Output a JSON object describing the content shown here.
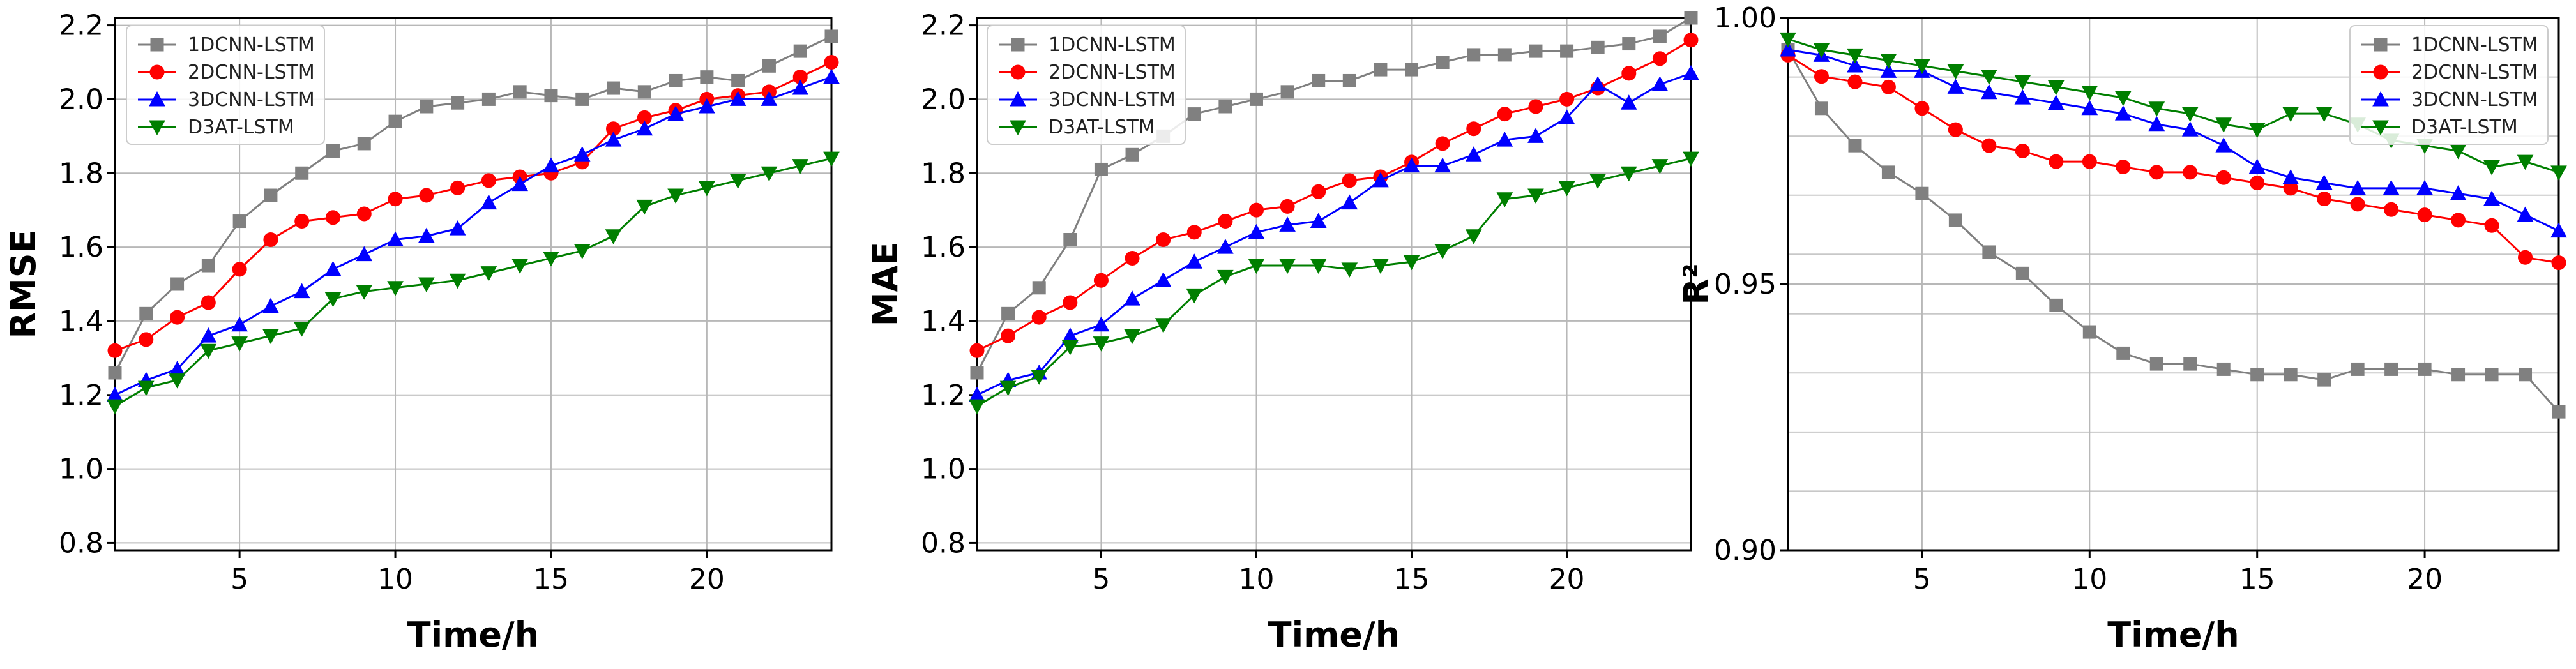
{
  "figure_title": "",
  "colors": {
    "1DCNN-LSTM": "#808080",
    "2DCNN-LSTM": "#ff0000",
    "3DCNN-LSTM": "#0000ff",
    "D3AT-LSTM": "#007f00"
  },
  "markers": {
    "1DCNN-LSTM": "square",
    "2DCNN-LSTM": "circle",
    "3DCNN-LSTM": "triangle-up",
    "D3AT-LSTM": "triangle-down"
  },
  "chart_data": [
    {
      "type": "line",
      "title": "",
      "xlabel": "Time/h",
      "ylabel": "RMSE",
      "xlim": [
        1,
        24
      ],
      "ylim": [
        0.78,
        2.22
      ],
      "xticks": [
        5,
        10,
        15,
        20
      ],
      "yticks": [
        0.8,
        1.0,
        1.2,
        1.4,
        1.6,
        1.8,
        2.0,
        2.2
      ],
      "ytick_labels": [
        "0.8",
        "1.0",
        "1.2",
        "1.4",
        "1.6",
        "1.8",
        "2.0",
        "2.2"
      ],
      "grid": true,
      "legend": [
        "1DCNN-LSTM",
        "2DCNN-LSTM",
        "3DCNN-LSTM",
        "D3AT-LSTM"
      ],
      "legend_position": "top-left",
      "x": [
        1,
        2,
        3,
        4,
        5,
        6,
        7,
        8,
        9,
        10,
        11,
        12,
        13,
        14,
        15,
        16,
        17,
        18,
        19,
        20,
        21,
        22,
        23,
        24
      ],
      "series": [
        {
          "name": "1DCNN-LSTM",
          "values": [
            1.26,
            1.42,
            1.5,
            1.55,
            1.67,
            1.74,
            1.8,
            1.86,
            1.88,
            1.94,
            1.98,
            1.99,
            2.0,
            2.02,
            2.01,
            2.0,
            2.03,
            2.02,
            2.05,
            2.06,
            2.05,
            2.09,
            2.13,
            2.17
          ]
        },
        {
          "name": "2DCNN-LSTM",
          "values": [
            1.32,
            1.35,
            1.41,
            1.45,
            1.54,
            1.62,
            1.67,
            1.68,
            1.69,
            1.73,
            1.74,
            1.76,
            1.78,
            1.79,
            1.8,
            1.83,
            1.92,
            1.95,
            1.97,
            2.0,
            2.01,
            2.02,
            2.06,
            2.1
          ]
        },
        {
          "name": "3DCNN-LSTM",
          "values": [
            1.2,
            1.24,
            1.27,
            1.36,
            1.39,
            1.44,
            1.48,
            1.54,
            1.58,
            1.62,
            1.63,
            1.65,
            1.72,
            1.77,
            1.82,
            1.85,
            1.89,
            1.92,
            1.96,
            1.98,
            2.0,
            2.0,
            2.03,
            2.06
          ]
        },
        {
          "name": "D3AT-LSTM",
          "values": [
            1.17,
            1.22,
            1.24,
            1.32,
            1.34,
            1.36,
            1.38,
            1.46,
            1.48,
            1.49,
            1.5,
            1.51,
            1.53,
            1.55,
            1.57,
            1.59,
            1.63,
            1.71,
            1.74,
            1.76,
            1.78,
            1.8,
            1.82,
            1.84
          ]
        }
      ]
    },
    {
      "type": "line",
      "title": "",
      "xlabel": "Time/h",
      "ylabel": "MAE",
      "xlim": [
        1,
        24
      ],
      "ylim": [
        0.78,
        2.22
      ],
      "xticks": [
        5,
        10,
        15,
        20
      ],
      "yticks": [
        0.8,
        1.0,
        1.2,
        1.4,
        1.6,
        1.8,
        2.0,
        2.2
      ],
      "ytick_labels": [
        "0.8",
        "1.0",
        "1.2",
        "1.4",
        "1.6",
        "1.8",
        "2.0",
        "2.2"
      ],
      "grid": true,
      "legend": [
        "1DCNN-LSTM",
        "2DCNN-LSTM",
        "3DCNN-LSTM",
        "D3AT-LSTM"
      ],
      "legend_position": "top-left",
      "x": [
        1,
        2,
        3,
        4,
        5,
        6,
        7,
        8,
        9,
        10,
        11,
        12,
        13,
        14,
        15,
        16,
        17,
        18,
        19,
        20,
        21,
        22,
        23,
        24
      ],
      "series": [
        {
          "name": "1DCNN-LSTM",
          "values": [
            1.26,
            1.42,
            1.49,
            1.62,
            1.81,
            1.85,
            1.9,
            1.96,
            1.98,
            2.0,
            2.02,
            2.05,
            2.05,
            2.08,
            2.08,
            2.1,
            2.12,
            2.12,
            2.13,
            2.13,
            2.14,
            2.15,
            2.17,
            2.22
          ]
        },
        {
          "name": "2DCNN-LSTM",
          "values": [
            1.32,
            1.36,
            1.41,
            1.45,
            1.51,
            1.57,
            1.62,
            1.64,
            1.67,
            1.7,
            1.71,
            1.75,
            1.78,
            1.79,
            1.83,
            1.88,
            1.92,
            1.96,
            1.98,
            2.0,
            2.03,
            2.07,
            2.11,
            2.16
          ]
        },
        {
          "name": "3DCNN-LSTM",
          "values": [
            1.2,
            1.24,
            1.26,
            1.36,
            1.39,
            1.46,
            1.51,
            1.56,
            1.6,
            1.64,
            1.66,
            1.67,
            1.72,
            1.78,
            1.82,
            1.82,
            1.85,
            1.89,
            1.9,
            1.95,
            2.04,
            1.99,
            2.04,
            2.07
          ]
        },
        {
          "name": "D3AT-LSTM",
          "values": [
            1.17,
            1.22,
            1.25,
            1.33,
            1.34,
            1.36,
            1.39,
            1.47,
            1.52,
            1.55,
            1.55,
            1.55,
            1.54,
            1.55,
            1.56,
            1.59,
            1.63,
            1.73,
            1.74,
            1.76,
            1.78,
            1.8,
            1.82,
            1.84
          ]
        }
      ]
    },
    {
      "type": "line",
      "title": "",
      "xlabel": "Time/h",
      "ylabel": "R²",
      "xlim": [
        1,
        24
      ],
      "ylim": [
        0.9,
        1.0
      ],
      "xticks": [
        5,
        10,
        15,
        20
      ],
      "yticks": [
        0.9,
        0.95,
        1.0
      ],
      "ytick_labels": [
        "0.90",
        "0.95",
        "1.00"
      ],
      "minor_grid": [
        0.9111,
        0.9222,
        0.9333,
        0.9444,
        0.9556,
        0.9667,
        0.9778,
        0.9889
      ],
      "grid": true,
      "legend": [
        "1DCNN-LSTM",
        "2DCNN-LSTM",
        "3DCNN-LSTM",
        "D3AT-LSTM"
      ],
      "legend_position": "top-right",
      "x": [
        1,
        2,
        3,
        4,
        5,
        6,
        7,
        8,
        9,
        10,
        11,
        12,
        13,
        14,
        15,
        16,
        17,
        18,
        19,
        20,
        21,
        22,
        23,
        24
      ],
      "series": [
        {
          "name": "1DCNN-LSTM",
          "values": [
            0.994,
            0.983,
            0.976,
            0.971,
            0.967,
            0.962,
            0.956,
            0.952,
            0.946,
            0.941,
            0.937,
            0.935,
            0.935,
            0.934,
            0.933,
            0.933,
            0.932,
            0.934,
            0.934,
            0.934,
            0.933,
            0.933,
            0.933,
            0.926
          ]
        },
        {
          "name": "2DCNN-LSTM",
          "values": [
            0.993,
            0.989,
            0.988,
            0.987,
            0.983,
            0.979,
            0.976,
            0.975,
            0.973,
            0.973,
            0.972,
            0.971,
            0.971,
            0.97,
            0.969,
            0.968,
            0.966,
            0.965,
            0.964,
            0.963,
            0.962,
            0.961,
            0.955,
            0.954
          ]
        },
        {
          "name": "3DCNN-LSTM",
          "values": [
            0.994,
            0.993,
            0.991,
            0.99,
            0.99,
            0.987,
            0.986,
            0.985,
            0.984,
            0.983,
            0.982,
            0.98,
            0.979,
            0.976,
            0.972,
            0.97,
            0.969,
            0.968,
            0.968,
            0.968,
            0.967,
            0.966,
            0.963,
            0.96
          ]
        },
        {
          "name": "D3AT-LSTM",
          "values": [
            0.996,
            0.994,
            0.993,
            0.992,
            0.991,
            0.99,
            0.989,
            0.988,
            0.987,
            0.986,
            0.985,
            0.983,
            0.982,
            0.98,
            0.979,
            0.982,
            0.982,
            0.98,
            0.977,
            0.976,
            0.975,
            0.972,
            0.973,
            0.971
          ]
        }
      ]
    }
  ]
}
